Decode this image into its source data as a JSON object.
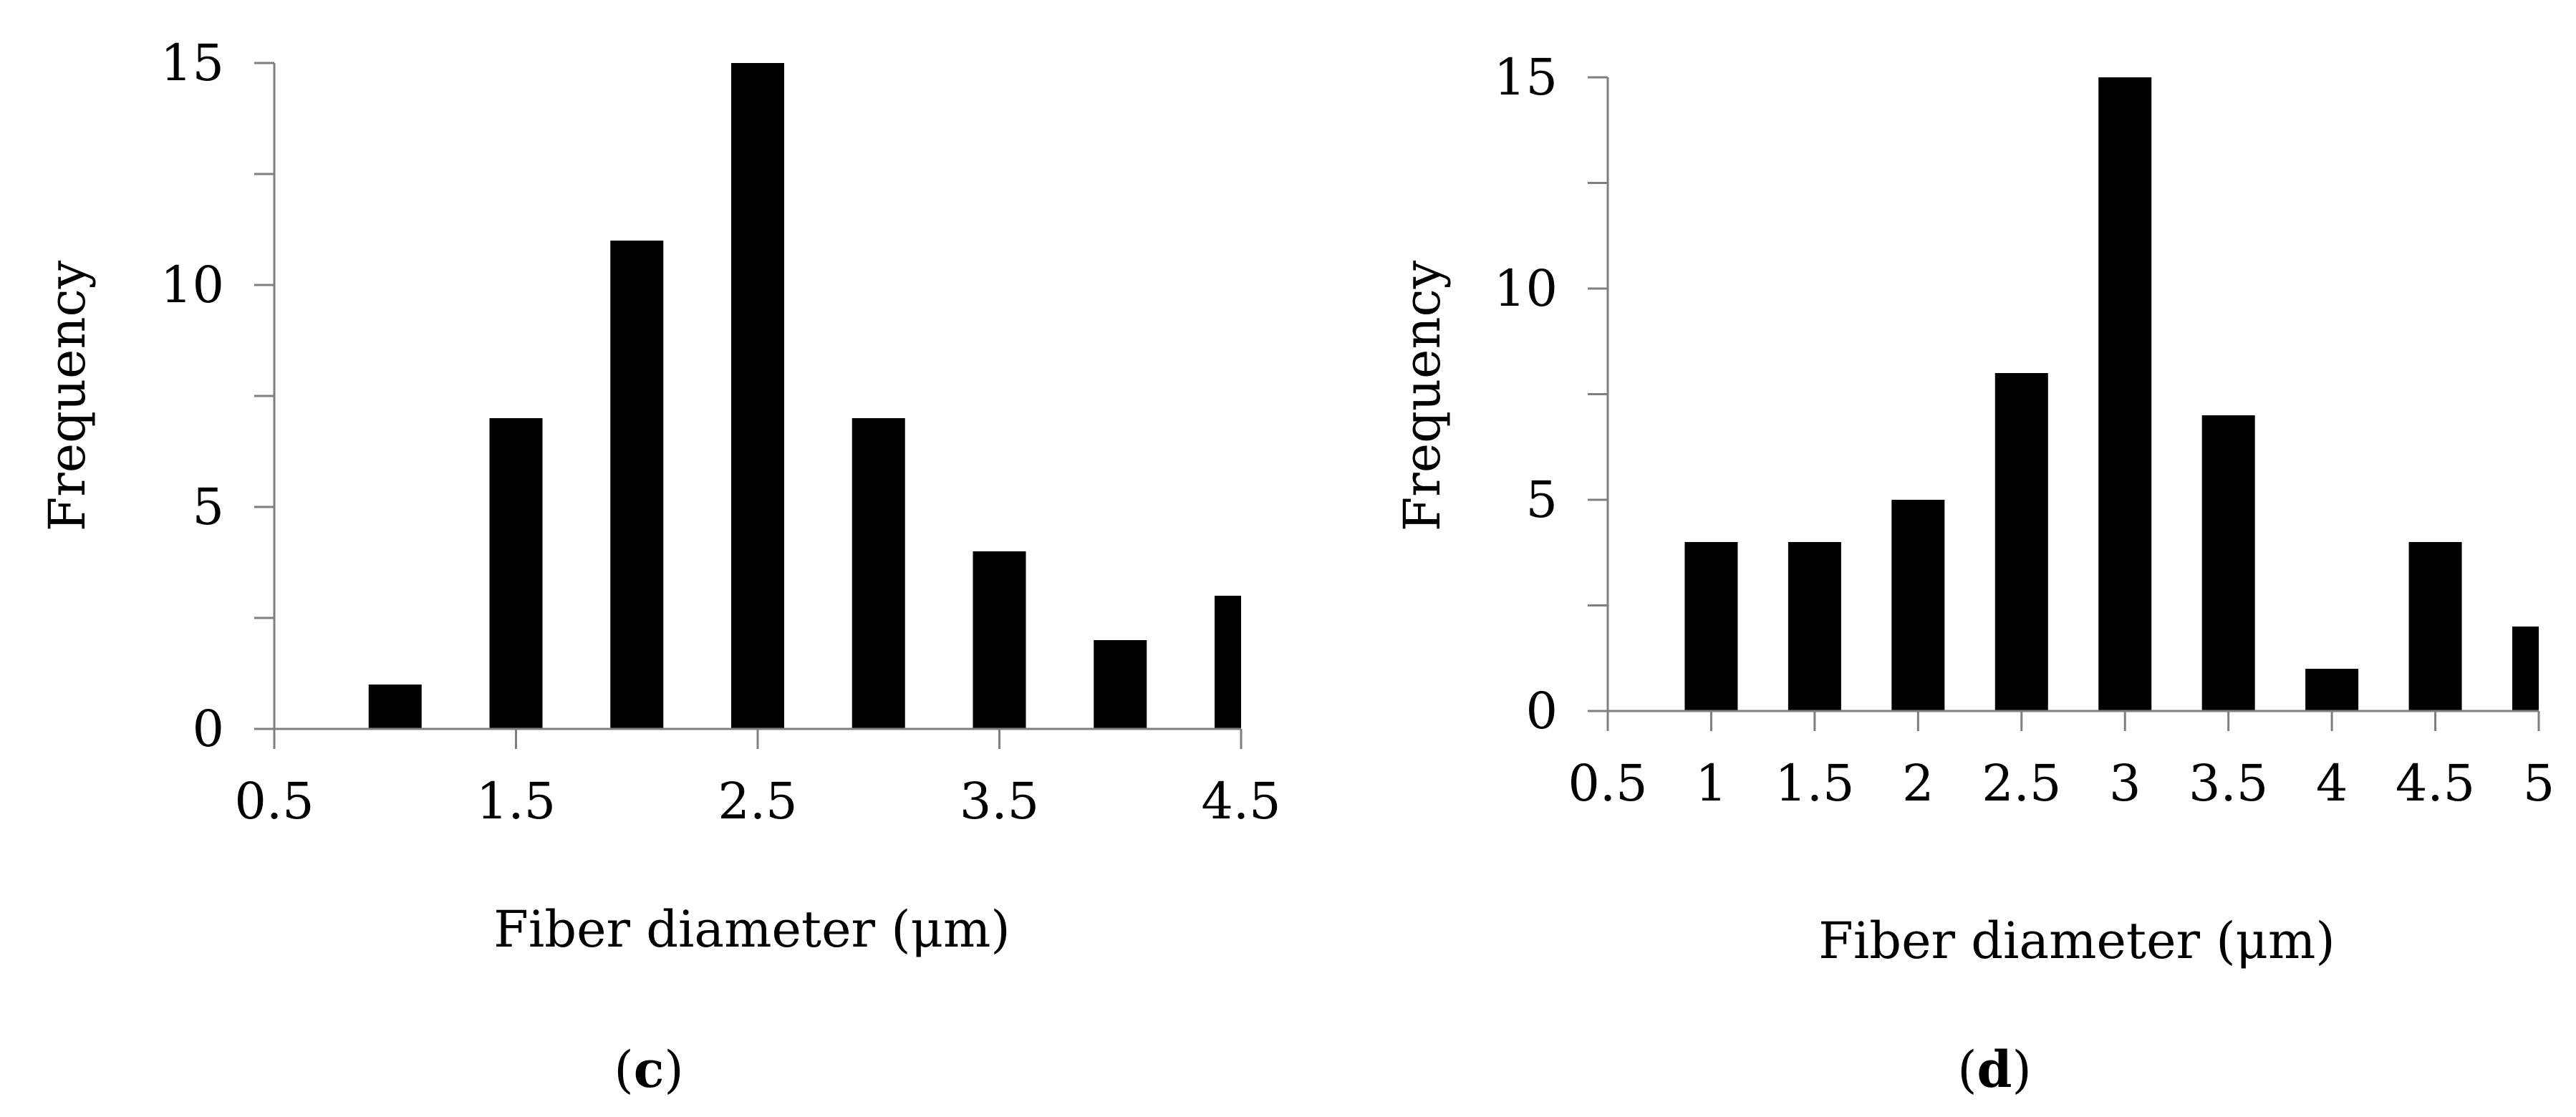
{
  "chart_data": [
    {
      "type": "bar",
      "panel_label": {
        "open": "(",
        "letter": "c",
        "close": ")"
      },
      "title": "",
      "xlabel": "Fiber diameter (μm)",
      "ylabel": "Frequency",
      "ylim": [
        0,
        15
      ],
      "xlim": [
        0.5,
        4.5
      ],
      "y_ticks": [
        "0",
        "5",
        "10",
        "15"
      ],
      "x_ticks": [
        "0.5",
        "1.5",
        "2.5",
        "3.5",
        "4.5"
      ],
      "categories": [
        1,
        1.5,
        2,
        2.5,
        3,
        3.5,
        4,
        4.5
      ],
      "values": [
        1,
        7,
        11,
        15,
        7,
        4,
        2,
        3
      ],
      "bar_color": "#000000",
      "axis_color": "#7f7f7f",
      "grid": false
    },
    {
      "type": "bar",
      "panel_label": {
        "open": "(",
        "letter": "d",
        "close": ")"
      },
      "title": "",
      "xlabel": "Fiber diameter (μm)",
      "ylabel": "Frequency",
      "ylim": [
        0,
        15
      ],
      "xlim": [
        0.5,
        5
      ],
      "y_ticks": [
        "0",
        "5",
        "10",
        "15"
      ],
      "x_ticks": [
        "0.5",
        "1",
        "1.5",
        "2",
        "2.5",
        "3",
        "3.5",
        "4",
        "4.5",
        "5"
      ],
      "categories": [
        1,
        1.5,
        2,
        2.5,
        3,
        3.5,
        4,
        4.5,
        5
      ],
      "values": [
        4,
        4,
        5,
        8,
        15,
        7,
        1,
        4,
        2
      ],
      "bar_color": "#000000",
      "axis_color": "#7f7f7f",
      "grid": false
    }
  ]
}
